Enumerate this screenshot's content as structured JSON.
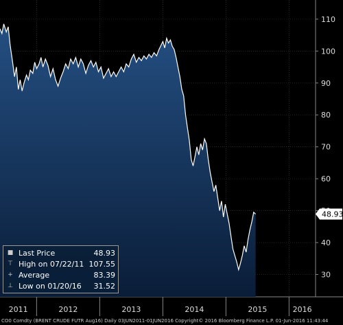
{
  "chart_data": {
    "type": "area",
    "title": "",
    "xlabel": "",
    "ylabel": "",
    "x_tick_labels": [
      "2011",
      "2012",
      "2013",
      "2014",
      "2015",
      "2016"
    ],
    "y_ticks": [
      30,
      40,
      50,
      60,
      70,
      80,
      90,
      100,
      110
    ],
    "ylim": [
      23,
      116
    ],
    "xlim": [
      2011.42,
      2016.42
    ],
    "series": [
      {
        "values": [
          [
            2011.42,
            107.0
          ],
          [
            2011.45,
            105.5
          ],
          [
            2011.48,
            108.5
          ],
          [
            2011.52,
            106.0
          ],
          [
            2011.55,
            107.6
          ],
          [
            2011.58,
            102.0
          ],
          [
            2011.62,
            96.5
          ],
          [
            2011.65,
            92.0
          ],
          [
            2011.68,
            95.0
          ],
          [
            2011.71,
            88.0
          ],
          [
            2011.74,
            91.0
          ],
          [
            2011.77,
            87.5
          ],
          [
            2011.8,
            90.0
          ],
          [
            2011.84,
            92.5
          ],
          [
            2011.87,
            91.0
          ],
          [
            2011.9,
            94.0
          ],
          [
            2011.94,
            93.0
          ],
          [
            2011.97,
            96.5
          ],
          [
            2012.0,
            94.5
          ],
          [
            2012.04,
            96.0
          ],
          [
            2012.07,
            98.0
          ],
          [
            2012.1,
            95.0
          ],
          [
            2012.14,
            97.5
          ],
          [
            2012.18,
            95.5
          ],
          [
            2012.22,
            92.0
          ],
          [
            2012.26,
            94.5
          ],
          [
            2012.3,
            91.0
          ],
          [
            2012.34,
            89.0
          ],
          [
            2012.38,
            91.5
          ],
          [
            2012.42,
            93.5
          ],
          [
            2012.46,
            96.0
          ],
          [
            2012.5,
            94.5
          ],
          [
            2012.54,
            97.5
          ],
          [
            2012.58,
            96.0
          ],
          [
            2012.62,
            98.0
          ],
          [
            2012.66,
            95.0
          ],
          [
            2012.7,
            97.5
          ],
          [
            2012.74,
            96.0
          ],
          [
            2012.78,
            93.0
          ],
          [
            2012.82,
            95.5
          ],
          [
            2012.86,
            97.0
          ],
          [
            2012.9,
            95.0
          ],
          [
            2012.94,
            96.5
          ],
          [
            2012.98,
            93.5
          ],
          [
            2013.02,
            95.0
          ],
          [
            2013.06,
            91.5
          ],
          [
            2013.1,
            93.0
          ],
          [
            2013.14,
            94.5
          ],
          [
            2013.18,
            92.0
          ],
          [
            2013.22,
            93.5
          ],
          [
            2013.26,
            92.0
          ],
          [
            2013.3,
            93.5
          ],
          [
            2013.34,
            95.0
          ],
          [
            2013.38,
            93.5
          ],
          [
            2013.42,
            96.0
          ],
          [
            2013.46,
            95.0
          ],
          [
            2013.5,
            97.5
          ],
          [
            2013.54,
            99.0
          ],
          [
            2013.58,
            96.5
          ],
          [
            2013.62,
            98.0
          ],
          [
            2013.66,
            97.0
          ],
          [
            2013.7,
            98.5
          ],
          [
            2013.74,
            97.5
          ],
          [
            2013.78,
            99.0
          ],
          [
            2013.82,
            98.0
          ],
          [
            2013.86,
            99.5
          ],
          [
            2013.9,
            98.5
          ],
          [
            2013.94,
            100.5
          ],
          [
            2014.0,
            103.0
          ],
          [
            2014.03,
            101.0
          ],
          [
            2014.06,
            104.0
          ],
          [
            2014.09,
            102.5
          ],
          [
            2014.12,
            103.5
          ],
          [
            2014.15,
            101.5
          ],
          [
            2014.18,
            100.5
          ],
          [
            2014.21,
            98.0
          ],
          [
            2014.24,
            95.0
          ],
          [
            2014.27,
            92.0
          ],
          [
            2014.3,
            88.0
          ],
          [
            2014.33,
            86.0
          ],
          [
            2014.36,
            80.0
          ],
          [
            2014.39,
            76.0
          ],
          [
            2014.42,
            72.0
          ],
          [
            2014.45,
            66.0
          ],
          [
            2014.48,
            64.0
          ],
          [
            2014.51,
            67.0
          ],
          [
            2014.54,
            70.0
          ],
          [
            2014.57,
            67.5
          ],
          [
            2014.6,
            71.0
          ],
          [
            2014.63,
            69.0
          ],
          [
            2014.66,
            72.5
          ],
          [
            2014.69,
            71.0
          ],
          [
            2014.72,
            66.0
          ],
          [
            2014.75,
            62.0
          ],
          [
            2014.78,
            59.0
          ],
          [
            2014.81,
            56.0
          ],
          [
            2014.84,
            58.0
          ],
          [
            2014.87,
            54.0
          ],
          [
            2014.9,
            50.0
          ],
          [
            2014.93,
            53.0
          ],
          [
            2014.96,
            48.0
          ],
          [
            2014.99,
            52.0
          ],
          [
            2015.02,
            49.0
          ],
          [
            2015.05,
            46.0
          ],
          [
            2015.08,
            42.0
          ],
          [
            2015.11,
            38.0
          ],
          [
            2015.14,
            36.0
          ],
          [
            2015.17,
            34.0
          ],
          [
            2015.2,
            31.5
          ],
          [
            2015.23,
            33.5
          ],
          [
            2015.26,
            36.0
          ],
          [
            2015.29,
            39.0
          ],
          [
            2015.32,
            37.0
          ],
          [
            2015.35,
            41.0
          ],
          [
            2015.38,
            44.0
          ],
          [
            2015.41,
            46.5
          ],
          [
            2015.44,
            49.5
          ],
          [
            2015.47,
            48.93
          ]
        ]
      }
    ],
    "last_price_label": "48.93",
    "legend_placement": "bottom-left",
    "grid": true
  },
  "legend": {
    "rows": [
      {
        "glyph": "■",
        "name": "Last Price",
        "value": "48.93"
      },
      {
        "glyph": "⊤",
        "name": "High on 07/22/11",
        "value": "107.55"
      },
      {
        "glyph": "+",
        "name": "Average",
        "value": "83.39"
      },
      {
        "glyph": "⊥",
        "name": "Low on 01/20/16",
        "value": "31.52"
      }
    ]
  },
  "footer": {
    "text": "CO0 Comdty (BRENT CRUDE FUTR Aug16) Daily 03JUN2011-01JUN2016 Copyright© 2016 Bloomberg Finance L.P. 01-Jun-2016 11:43:44"
  },
  "colors": {
    "background": "#000000",
    "area_top": "#1f4a7a",
    "area_bottom": "#0b1f3a",
    "line": "#ffffff",
    "grid": "#3a3a3a",
    "label_bg": "#ffffff"
  }
}
